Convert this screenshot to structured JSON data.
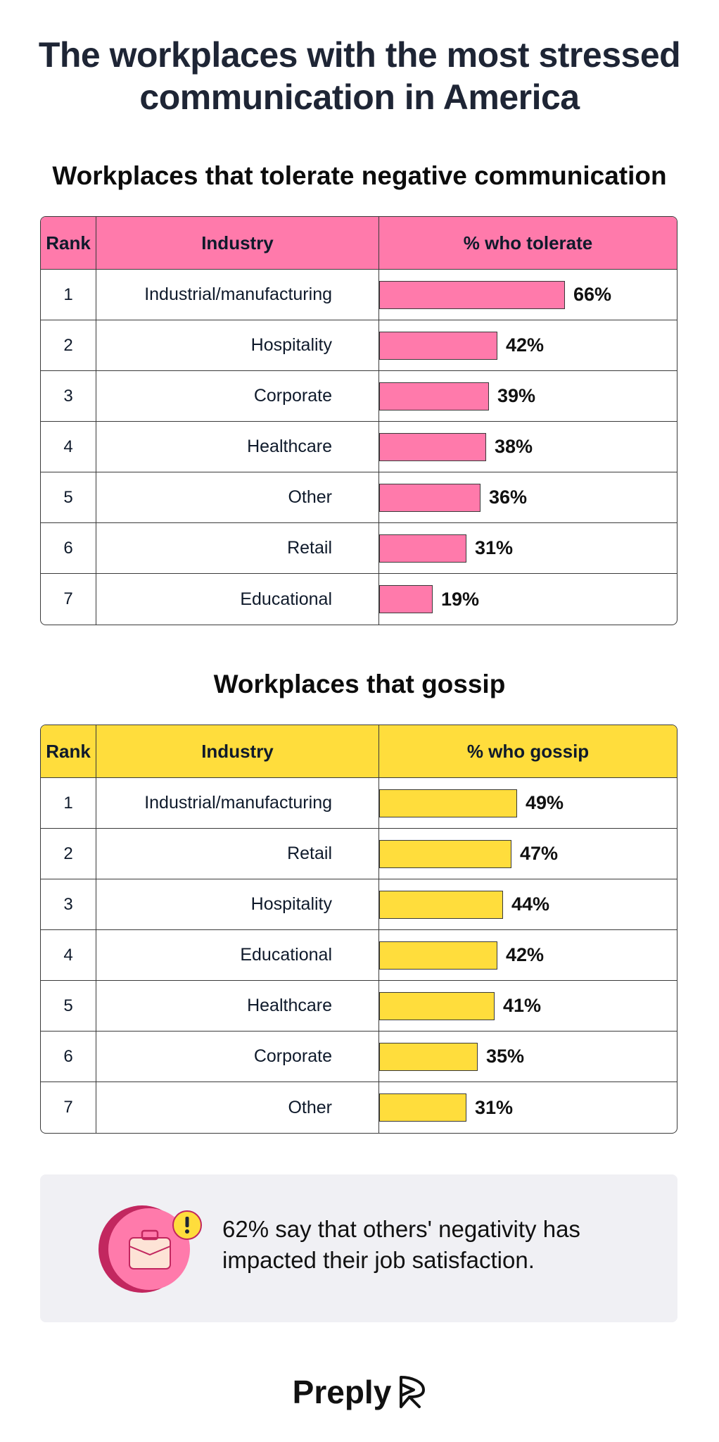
{
  "title_line1": "The workplaces with the most stressed",
  "title_line2": "communication in America",
  "colors": {
    "pink": "#ff7aab",
    "yellow": "#ffdd3c",
    "navy": "#1e2535"
  },
  "chart_data": [
    {
      "type": "table",
      "title": "Workplaces that tolerate negative communication",
      "headers": [
        "Rank",
        "Industry",
        "% who tolerate"
      ],
      "rows": [
        {
          "rank": "1",
          "industry": "Industrial/manufacturing",
          "value": 66,
          "label": "66%"
        },
        {
          "rank": "2",
          "industry": "Hospitality",
          "value": 42,
          "label": "42%"
        },
        {
          "rank": "3",
          "industry": "Corporate",
          "value": 39,
          "label": "39%"
        },
        {
          "rank": "4",
          "industry": "Healthcare",
          "value": 38,
          "label": "38%"
        },
        {
          "rank": "5",
          "industry": "Other",
          "value": 36,
          "label": "36%"
        },
        {
          "rank": "6",
          "industry": "Retail",
          "value": 31,
          "label": "31%"
        },
        {
          "rank": "7",
          "industry": "Educational",
          "value": 19,
          "label": "19%"
        }
      ]
    },
    {
      "type": "table",
      "title": "Workplaces that gossip",
      "headers": [
        "Rank",
        "Industry",
        "% who gossip"
      ],
      "rows": [
        {
          "rank": "1",
          "industry": "Industrial/manufacturing",
          "value": 49,
          "label": "49%"
        },
        {
          "rank": "2",
          "industry": "Retail",
          "value": 47,
          "label": "47%"
        },
        {
          "rank": "3",
          "industry": "Hospitality",
          "value": 44,
          "label": "44%"
        },
        {
          "rank": "4",
          "industry": "Educational",
          "value": 42,
          "label": "42%"
        },
        {
          "rank": "5",
          "industry": "Healthcare",
          "value": 41,
          "label": "41%"
        },
        {
          "rank": "6",
          "industry": "Corporate",
          "value": 35,
          "label": "35%"
        },
        {
          "rank": "7",
          "industry": "Other",
          "value": 31,
          "label": "31%"
        }
      ]
    }
  ],
  "callout": {
    "line1": "62% say that others' negativity has",
    "line2": "impacted their job satisfaction.",
    "icon": "briefcase-alert-icon"
  },
  "logo": {
    "text": "Preply",
    "icon": "preply-logo-icon"
  }
}
